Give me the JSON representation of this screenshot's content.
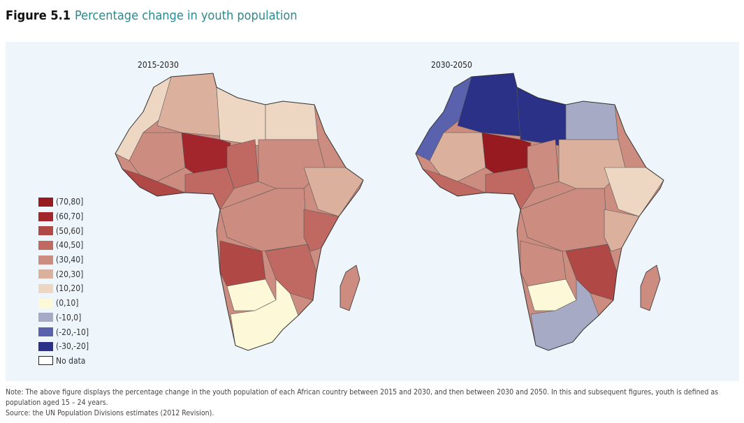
{
  "figure": {
    "number": "Figure 5.1",
    "title": "Percentage change in youth population"
  },
  "maps": [
    {
      "label": "2015-2030"
    },
    {
      "label": "2030-2050"
    }
  ],
  "legend": [
    {
      "label": "(70,80]",
      "color": "#961a1f"
    },
    {
      "label": "(60,70]",
      "color": "#a3262d"
    },
    {
      "label": "(50,60]",
      "color": "#b04846"
    },
    {
      "label": "(40,50]",
      "color": "#bf6962"
    },
    {
      "label": "(30,40]",
      "color": "#cc8c80"
    },
    {
      "label": "(20,30]",
      "color": "#dbb09d"
    },
    {
      "label": "(10,20]",
      "color": "#edd6c2"
    },
    {
      "label": "(0,10]",
      "color": "#fcf8d8"
    },
    {
      "label": "(-10,0]",
      "color": "#a7aac4"
    },
    {
      "label": "(-20,-10]",
      "color": "#5a62ad"
    },
    {
      "label": "(-30,-20]",
      "color": "#2a3187"
    },
    {
      "label": "No data",
      "color": "#ffffff"
    }
  ],
  "note": "Note: The above figure displays the percentage change in the youth population of each African country between 2015 and 2030, and then between 2030 and 2050. In this and subsequent figures, youth is defined as population aged 15 – 24 years.",
  "source": "Source: the UN Population Divisions estimates (2012 Revision)."
}
